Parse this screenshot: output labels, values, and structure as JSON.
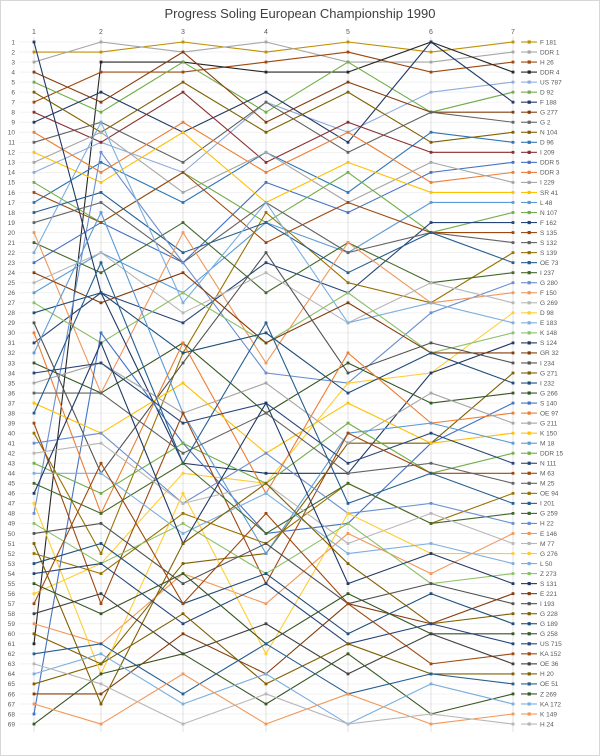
{
  "title": "Progress Soling European Championship 1990",
  "chart_data": {
    "type": "line",
    "title": "Progress Soling European Championship 1990",
    "x_labels": [
      "1",
      "2",
      "3",
      "4",
      "5",
      "6",
      "7"
    ],
    "rank_axis": {
      "min": 1,
      "max": 69,
      "direction": "top-is-best"
    },
    "grid": true,
    "legend_position": "right",
    "series": [
      {
        "name": "F 181",
        "color": "#BF9000",
        "positions": [
          2,
          2,
          1,
          2,
          1,
          2,
          1
        ]
      },
      {
        "name": "DDR 1",
        "color": "#A6A6A6",
        "positions": [
          3,
          1,
          2,
          1,
          3,
          3,
          2
        ]
      },
      {
        "name": "H 26",
        "color": "#9E480E",
        "positions": [
          7,
          4,
          4,
          3,
          2,
          4,
          3
        ]
      },
      {
        "name": "DDR 4",
        "color": "#262626",
        "positions": [
          61,
          3,
          3,
          4,
          4,
          1,
          4
        ]
      },
      {
        "name": "US 787",
        "color": "#8FAADC",
        "positions": [
          14,
          11,
          14,
          7,
          10,
          6,
          5
        ]
      },
      {
        "name": "D 92",
        "color": "#70AD47",
        "positions": [
          5,
          8,
          3,
          8,
          3,
          8,
          6
        ]
      },
      {
        "name": "F 188",
        "color": "#203864",
        "positions": [
          9,
          6,
          10,
          6,
          11,
          1,
          7
        ]
      },
      {
        "name": "G 277",
        "color": "#843C0C",
        "positions": [
          4,
          7,
          2,
          9,
          5,
          8,
          8
        ]
      },
      {
        "name": "G 2",
        "color": "#636363",
        "positions": [
          11,
          9,
          13,
          7,
          12,
          8,
          9
        ]
      },
      {
        "name": "N 104",
        "color": "#7F6000",
        "positions": [
          6,
          10,
          5,
          10,
          6,
          11,
          10
        ]
      },
      {
        "name": "D 96",
        "color": "#2E75B6",
        "positions": [
          17,
          13,
          17,
          12,
          16,
          10,
          11
        ]
      },
      {
        "name": "I 209",
        "color": "#8B2E2E",
        "positions": [
          8,
          11,
          6,
          13,
          9,
          12,
          12
        ]
      },
      {
        "name": "DDR 5",
        "color": "#4472C4",
        "positions": [
          23,
          19,
          23,
          15,
          18,
          14,
          13
        ]
      },
      {
        "name": "DDR 3",
        "color": "#ED7D31",
        "positions": [
          10,
          14,
          9,
          14,
          10,
          15,
          14
        ]
      },
      {
        "name": "I 229",
        "color": "#A5A5A5",
        "positions": [
          13,
          10,
          16,
          12,
          17,
          13,
          15
        ]
      },
      {
        "name": "SR 41",
        "color": "#FFC000",
        "positions": [
          12,
          15,
          10,
          17,
          13,
          16,
          16
        ]
      },
      {
        "name": "L 48",
        "color": "#5B9BD5",
        "positions": [
          26,
          22,
          26,
          19,
          22,
          17,
          17
        ]
      },
      {
        "name": "N 107",
        "color": "#70AD47",
        "positions": [
          15,
          19,
          14,
          19,
          14,
          20,
          18
        ]
      },
      {
        "name": "F 162",
        "color": "#264478",
        "positions": [
          31,
          26,
          29,
          23,
          26,
          19,
          19
        ]
      },
      {
        "name": "S 135",
        "color": "#9E480E",
        "positions": [
          16,
          19,
          14,
          21,
          17,
          20,
          20
        ]
      },
      {
        "name": "S 132",
        "color": "#636363",
        "positions": [
          19,
          17,
          23,
          17,
          22,
          20,
          21
        ]
      },
      {
        "name": "S 139",
        "color": "#997300",
        "positions": [
          40,
          52,
          32,
          18,
          25,
          27,
          22
        ]
      },
      {
        "name": "OE 73",
        "color": "#255E91",
        "positions": [
          18,
          16,
          22,
          19,
          24,
          20,
          23
        ]
      },
      {
        "name": "I 237",
        "color": "#43682B",
        "positions": [
          21,
          24,
          19,
          26,
          21,
          25,
          24
        ]
      },
      {
        "name": "G 280",
        "color": "#698ED0",
        "positions": [
          48,
          12,
          23,
          34,
          35,
          28,
          25
        ]
      },
      {
        "name": "F 150",
        "color": "#F1975A",
        "positions": [
          20,
          36,
          20,
          33,
          21,
          27,
          26
        ]
      },
      {
        "name": "G 269",
        "color": "#B7B7B7",
        "positions": [
          25,
          22,
          28,
          24,
          29,
          25,
          27
        ]
      },
      {
        "name": "D 98",
        "color": "#FFCD33",
        "positions": [
          56,
          53,
          44,
          45,
          35,
          34,
          28
        ]
      },
      {
        "name": "E 183",
        "color": "#7CAFDD",
        "positions": [
          22,
          9,
          27,
          17,
          29,
          27,
          29
        ]
      },
      {
        "name": "K 148",
        "color": "#8CC168",
        "positions": [
          27,
          31,
          26,
          31,
          26,
          32,
          30
        ]
      },
      {
        "name": "S 124",
        "color": "#203864",
        "positions": [
          1,
          26,
          43,
          44,
          44,
          34,
          31
        ]
      },
      {
        "name": "GR 32",
        "color": "#843C0C",
        "positions": [
          24,
          27,
          24,
          31,
          27,
          32,
          32
        ]
      },
      {
        "name": "I 234",
        "color": "#525252",
        "positions": [
          29,
          44,
          33,
          22,
          34,
          31,
          33
        ]
      },
      {
        "name": "G 271",
        "color": "#7F6000",
        "positions": [
          65,
          63,
          53,
          52,
          41,
          41,
          34
        ]
      },
      {
        "name": "I 232",
        "color": "#1F4E79",
        "positions": [
          28,
          26,
          32,
          30,
          36,
          32,
          35
        ]
      },
      {
        "name": "G 266",
        "color": "#375623",
        "positions": [
          33,
          36,
          31,
          38,
          33,
          37,
          36
        ]
      },
      {
        "name": "S 140",
        "color": "#4472C4",
        "positions": [
          68,
          30,
          41,
          50,
          49,
          41,
          37
        ]
      },
      {
        "name": "OE 97",
        "color": "#ED7D31",
        "positions": [
          30,
          48,
          31,
          46,
          32,
          39,
          38
        ]
      },
      {
        "name": "G 211",
        "color": "#A5A5A5",
        "positions": [
          35,
          33,
          38,
          35,
          41,
          36,
          39
        ]
      },
      {
        "name": "K 150",
        "color": "#FFC000",
        "positions": [
          37,
          40,
          35,
          42,
          37,
          41,
          40
        ]
      },
      {
        "name": "M 18",
        "color": "#5B9BD5",
        "positions": [
          32,
          18,
          38,
          52,
          40,
          39,
          41
        ]
      },
      {
        "name": "DDR 15",
        "color": "#70AD47",
        "positions": [
          43,
          46,
          41,
          45,
          39,
          44,
          42
        ]
      },
      {
        "name": "N 111",
        "color": "#264478",
        "positions": [
          34,
          33,
          39,
          37,
          43,
          40,
          43
        ]
      },
      {
        "name": "M 63",
        "color": "#9E480E",
        "positions": [
          39,
          57,
          38,
          55,
          40,
          44,
          44
        ]
      },
      {
        "name": "M 25",
        "color": "#636363",
        "positions": [
          36,
          36,
          42,
          38,
          44,
          43,
          45
        ]
      },
      {
        "name": "OE 94",
        "color": "#997300",
        "positions": [
          52,
          54,
          48,
          51,
          45,
          49,
          46
        ]
      },
      {
        "name": "I 201",
        "color": "#255E91",
        "positions": [
          38,
          23,
          43,
          29,
          47,
          44,
          47
        ]
      },
      {
        "name": "G 259",
        "color": "#43682B",
        "positions": [
          45,
          48,
          43,
          50,
          45,
          49,
          48
        ]
      },
      {
        "name": "H 22",
        "color": "#698ED0",
        "positions": [
          41,
          40,
          47,
          42,
          48,
          47,
          49
        ]
      },
      {
        "name": "E 146",
        "color": "#F1975A",
        "positions": [
          59,
          61,
          54,
          57,
          50,
          54,
          50
        ]
      },
      {
        "name": "M 77",
        "color": "#B7B7B7",
        "positions": [
          42,
          41,
          47,
          45,
          51,
          48,
          51
        ]
      },
      {
        "name": "G 276",
        "color": "#FFCD33",
        "positions": [
          47,
          64,
          46,
          62,
          48,
          52,
          52
        ]
      },
      {
        "name": "L 50",
        "color": "#7CAFDD",
        "positions": [
          44,
          44,
          50,
          46,
          52,
          51,
          53
        ]
      },
      {
        "name": "Z 273",
        "color": "#8CC168",
        "positions": [
          49,
          53,
          49,
          54,
          49,
          55,
          54
        ]
      },
      {
        "name": "S 131",
        "color": "#203864",
        "positions": [
          46,
          31,
          51,
          37,
          55,
          52,
          55
        ]
      },
      {
        "name": "E 221",
        "color": "#843C0C",
        "positions": [
          66,
          66,
          60,
          64,
          57,
          59,
          56
        ]
      },
      {
        "name": "I 193",
        "color": "#525252",
        "positions": [
          50,
          49,
          55,
          51,
          57,
          55,
          57
        ]
      },
      {
        "name": "G 228",
        "color": "#7F6000",
        "positions": [
          51,
          67,
          51,
          45,
          53,
          59,
          58
        ]
      },
      {
        "name": "G 189",
        "color": "#1F4E79",
        "positions": [
          53,
          51,
          57,
          54,
          60,
          56,
          59
        ]
      },
      {
        "name": "G 258",
        "color": "#375623",
        "positions": [
          55,
          58,
          54,
          61,
          56,
          60,
          60
        ]
      },
      {
        "name": "US 715",
        "color": "#264478",
        "positions": [
          54,
          53,
          59,
          55,
          61,
          59,
          61
        ]
      },
      {
        "name": "KA 152",
        "color": "#9E480E",
        "positions": [
          57,
          43,
          57,
          48,
          57,
          63,
          62
        ]
      },
      {
        "name": "OE 36",
        "color": "#404040",
        "positions": [
          58,
          56,
          62,
          59,
          64,
          60,
          63
        ]
      },
      {
        "name": "H 20",
        "color": "#7F6000",
        "positions": [
          60,
          63,
          58,
          65,
          61,
          64,
          64
        ]
      },
      {
        "name": "OE 51",
        "color": "#255E91",
        "positions": [
          62,
          61,
          66,
          61,
          66,
          64,
          65
        ]
      },
      {
        "name": "Z 269",
        "color": "#375623",
        "positions": [
          69,
          64,
          62,
          67,
          62,
          68,
          66
        ]
      },
      {
        "name": "KA 172",
        "color": "#7CAFDD",
        "positions": [
          64,
          62,
          67,
          64,
          69,
          65,
          67
        ]
      },
      {
        "name": "K 149",
        "color": "#F1975A",
        "positions": [
          67,
          69,
          64,
          69,
          66,
          69,
          68
        ]
      },
      {
        "name": "H 24",
        "color": "#B7B7B7",
        "positions": [
          63,
          65,
          69,
          66,
          69,
          68,
          69
        ]
      }
    ]
  }
}
